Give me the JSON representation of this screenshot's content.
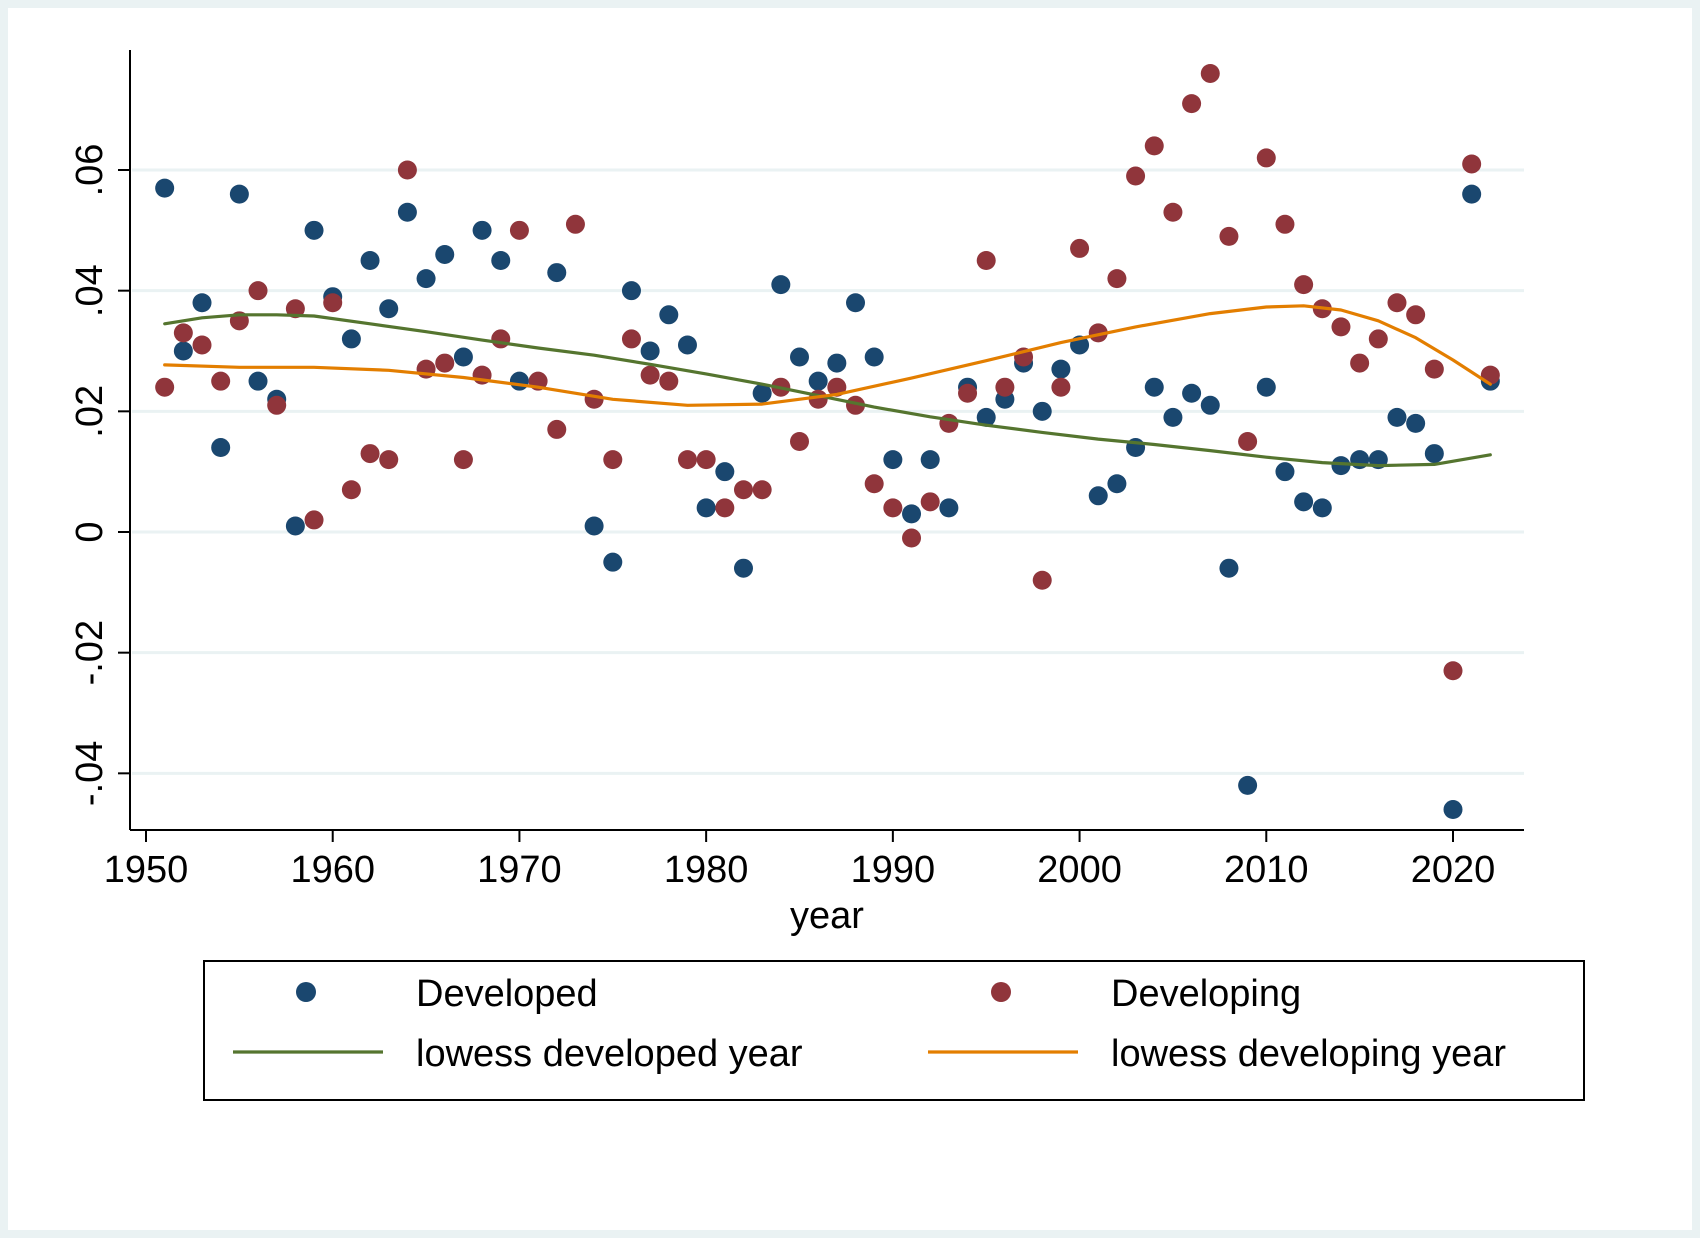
{
  "chart_data": {
    "type": "scatter",
    "xlabel": "year",
    "ylabel": "",
    "xlim": [
      1948,
      2023
    ],
    "ylim": [
      -0.05,
      0.08
    ],
    "xticks": [
      1950,
      1960,
      1970,
      1980,
      1990,
      2000,
      2010,
      2020
    ],
    "xtick_labels": [
      "1950",
      "1960",
      "1970",
      "1980",
      "1990",
      "2000",
      "2010",
      "2020"
    ],
    "yticks": [
      -0.04,
      -0.02,
      0,
      0.02,
      0.04,
      0.06
    ],
    "ytick_labels": [
      "-.04",
      "-.02",
      "0",
      ".02",
      ".04",
      ".06"
    ],
    "grid": "horizontal",
    "legend_position": "bottom",
    "colors": {
      "developed": "#1a476f",
      "developing": "#90353b",
      "lowess_developed": "#55752f",
      "lowess_developing": "#e37e00",
      "gridline": "#eaf2f3",
      "background": "#eaf2f3"
    },
    "series": [
      {
        "name": "Developed",
        "kind": "scatter",
        "x": [
          1951,
          1952,
          1953,
          1954,
          1955,
          1956,
          1957,
          1958,
          1959,
          1960,
          1961,
          1962,
          1963,
          1964,
          1965,
          1966,
          1967,
          1968,
          1969,
          1970,
          1972,
          1974,
          1975,
          1976,
          1977,
          1978,
          1979,
          1980,
          1981,
          1982,
          1983,
          1984,
          1985,
          1986,
          1987,
          1988,
          1989,
          1990,
          1991,
          1992,
          1993,
          1994,
          1995,
          1996,
          1997,
          1998,
          1999,
          2000,
          2001,
          2002,
          2003,
          2004,
          2005,
          2006,
          2007,
          2008,
          2009,
          2010,
          2011,
          2012,
          2013,
          2014,
          2015,
          2016,
          2017,
          2018,
          2019,
          2020,
          2021,
          2022
        ],
        "y": [
          0.057,
          0.03,
          0.038,
          0.014,
          0.056,
          0.025,
          0.022,
          0.001,
          0.05,
          0.039,
          0.032,
          0.045,
          0.037,
          0.053,
          0.042,
          0.046,
          0.029,
          0.05,
          0.045,
          0.025,
          0.043,
          0.001,
          -0.005,
          0.04,
          0.03,
          0.036,
          0.031,
          0.004,
          0.01,
          -0.006,
          0.023,
          0.041,
          0.029,
          0.025,
          0.028,
          0.038,
          0.029,
          0.012,
          0.003,
          0.012,
          0.004,
          0.024,
          0.019,
          0.022,
          0.028,
          0.02,
          0.027,
          0.031,
          0.006,
          0.008,
          0.014,
          0.024,
          0.019,
          0.023,
          0.021,
          -0.006,
          -0.042,
          0.024,
          0.01,
          0.005,
          0.004,
          0.011,
          0.012,
          0.012,
          0.019,
          0.018,
          0.013,
          -0.046,
          0.056,
          0.025
        ]
      },
      {
        "name": "Developing",
        "kind": "scatter",
        "x": [
          1951,
          1952,
          1953,
          1954,
          1955,
          1956,
          1957,
          1958,
          1959,
          1960,
          1961,
          1962,
          1963,
          1964,
          1965,
          1966,
          1967,
          1968,
          1969,
          1970,
          1971,
          1972,
          1973,
          1974,
          1975,
          1976,
          1977,
          1978,
          1979,
          1980,
          1981,
          1982,
          1983,
          1984,
          1985,
          1986,
          1987,
          1988,
          1989,
          1990,
          1991,
          1992,
          1993,
          1994,
          1995,
          1996,
          1997,
          1998,
          1999,
          2000,
          2001,
          2002,
          2003,
          2004,
          2005,
          2006,
          2007,
          2008,
          2009,
          2010,
          2011,
          2012,
          2013,
          2014,
          2015,
          2016,
          2017,
          2018,
          2019,
          2020,
          2021,
          2022
        ],
        "y": [
          0.024,
          0.033,
          0.031,
          0.025,
          0.035,
          0.04,
          0.021,
          0.037,
          0.002,
          0.038,
          0.007,
          0.013,
          0.012,
          0.06,
          0.027,
          0.028,
          0.012,
          0.026,
          0.032,
          0.05,
          0.025,
          0.017,
          0.051,
          0.022,
          0.012,
          0.032,
          0.026,
          0.025,
          0.012,
          0.012,
          0.004,
          0.007,
          0.007,
          0.024,
          0.015,
          0.022,
          0.024,
          0.021,
          0.008,
          0.004,
          -0.001,
          0.005,
          0.018,
          0.023,
          0.045,
          0.024,
          0.029,
          -0.008,
          0.024,
          0.047,
          0.033,
          0.042,
          0.059,
          0.064,
          0.053,
          0.071,
          0.076,
          0.049,
          0.015,
          0.062,
          0.051,
          0.041,
          0.037,
          0.034,
          0.028,
          0.032,
          0.038,
          0.036,
          0.027,
          -0.023,
          0.061,
          0.026
        ]
      },
      {
        "name": "lowess developed year",
        "kind": "line",
        "x": [
          1951,
          1953,
          1955,
          1957,
          1959,
          1962,
          1965,
          1968,
          1971,
          1974,
          1977,
          1980,
          1983,
          1986,
          1989,
          1992,
          1995,
          1998,
          2001,
          2004,
          2007,
          2010,
          2013,
          2016,
          2019,
          2022
        ],
        "y": [
          0.0345,
          0.0355,
          0.036,
          0.036,
          0.0358,
          0.0345,
          0.0332,
          0.0318,
          0.0305,
          0.0293,
          0.0278,
          0.0262,
          0.0245,
          0.0226,
          0.0207,
          0.0191,
          0.0177,
          0.0165,
          0.0154,
          0.0145,
          0.0135,
          0.0124,
          0.0115,
          0.011,
          0.0112,
          0.0128
        ]
      },
      {
        "name": "lowess developing year",
        "kind": "line",
        "x": [
          1951,
          1955,
          1959,
          1963,
          1967,
          1971,
          1975,
          1979,
          1983,
          1987,
          1991,
          1995,
          1999,
          2003,
          2007,
          2010,
          2012,
          2014,
          2016,
          2018,
          2020,
          2022
        ],
        "y": [
          0.0277,
          0.0273,
          0.0273,
          0.0268,
          0.0256,
          0.024,
          0.022,
          0.021,
          0.0212,
          0.0228,
          0.0255,
          0.0284,
          0.0314,
          0.034,
          0.0362,
          0.0373,
          0.0375,
          0.0368,
          0.035,
          0.0322,
          0.0285,
          0.0245
        ]
      }
    ]
  }
}
